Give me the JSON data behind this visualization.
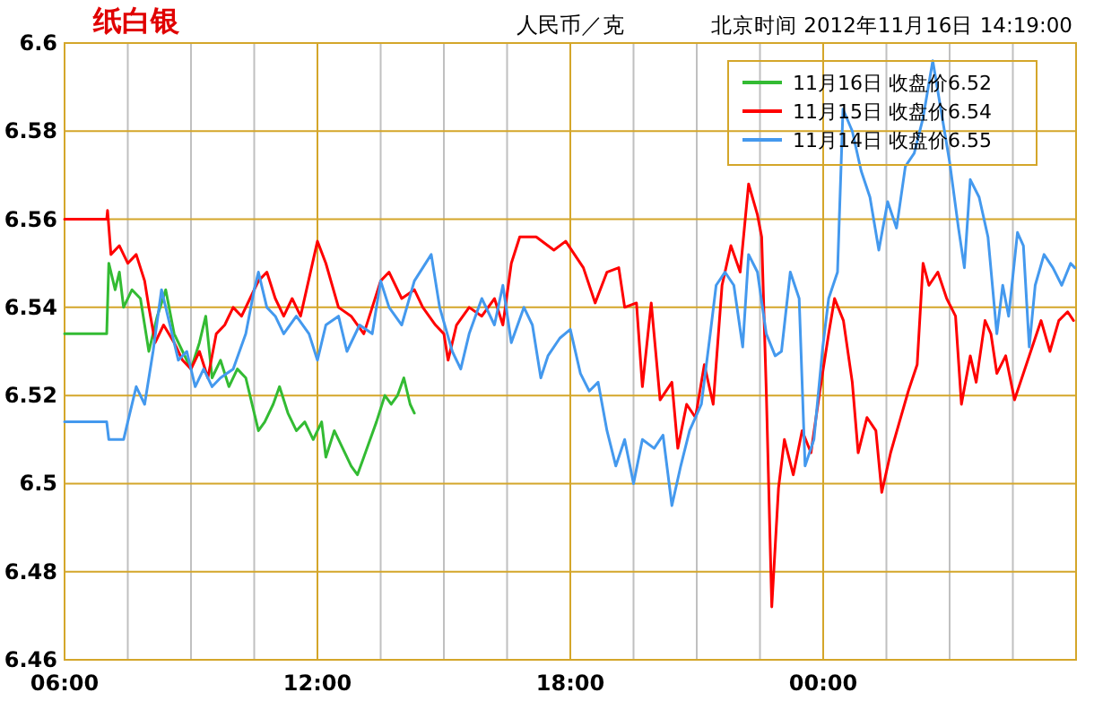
{
  "chart_data": {
    "type": "line",
    "title": "纸白银",
    "subtitle": "人民币／克",
    "annotations": [
      "北京时间 2012年11月16日 14:19:00"
    ],
    "xlim": [
      6,
      30
    ],
    "ylim": [
      6.46,
      6.6
    ],
    "xticks": [
      {
        "value": 6,
        "label": "06:00"
      },
      {
        "value": 7.5,
        "label": null
      },
      {
        "value": 9,
        "label": null
      },
      {
        "value": 10.5,
        "label": null
      },
      {
        "value": 12,
        "label": "12:00"
      },
      {
        "value": 13.5,
        "label": null
      },
      {
        "value": 15,
        "label": null
      },
      {
        "value": 16.5,
        "label": null
      },
      {
        "value": 18,
        "label": "18:00"
      },
      {
        "value": 19.5,
        "label": null
      },
      {
        "value": 21,
        "label": null
      },
      {
        "value": 22.5,
        "label": null
      },
      {
        "value": 24,
        "label": "00:00"
      },
      {
        "value": 25.5,
        "label": null
      },
      {
        "value": 27,
        "label": null
      },
      {
        "value": 28.5,
        "label": null
      }
    ],
    "yticks": [
      6.46,
      6.48,
      6.5,
      6.52,
      6.54,
      6.56,
      6.58,
      6.6
    ],
    "grid": true,
    "legend": "top right",
    "line_style": "solid",
    "series": [
      {
        "name": "11月16日 收盘价6.52",
        "color": "#33bb33",
        "x": [
          6.0,
          7.0,
          7.05,
          7.2,
          7.3,
          7.4,
          7.6,
          7.8,
          8.0,
          8.2,
          8.4,
          8.6,
          8.8,
          9.0,
          9.2,
          9.35,
          9.5,
          9.7,
          9.9,
          10.1,
          10.3,
          10.45,
          10.6,
          10.75,
          10.95,
          11.1,
          11.3,
          11.5,
          11.7,
          11.9,
          12.1,
          12.2,
          12.4,
          12.6,
          12.8,
          12.95,
          13.1,
          13.25,
          13.4,
          13.6,
          13.75,
          13.9,
          14.05,
          14.2,
          14.3
        ],
        "values": [
          6.534,
          6.534,
          6.55,
          6.544,
          6.548,
          6.54,
          6.544,
          6.542,
          6.53,
          6.538,
          6.544,
          6.534,
          6.53,
          6.526,
          6.532,
          6.538,
          6.524,
          6.528,
          6.522,
          6.526,
          6.524,
          6.518,
          6.512,
          6.514,
          6.518,
          6.522,
          6.516,
          6.512,
          6.514,
          6.51,
          6.514,
          6.506,
          6.512,
          6.508,
          6.504,
          6.502,
          6.506,
          6.51,
          6.514,
          6.52,
          6.518,
          6.52,
          6.524,
          6.518,
          6.516
        ]
      },
      {
        "name": "11月15日 收盘价6.54",
        "color": "#ff0000",
        "x": [
          6.0,
          7.0,
          7.02,
          7.1,
          7.3,
          7.5,
          7.7,
          7.9,
          8.0,
          8.15,
          8.35,
          8.6,
          8.8,
          9.0,
          9.2,
          9.4,
          9.6,
          9.8,
          10.0,
          10.2,
          10.4,
          10.6,
          10.8,
          11.0,
          11.2,
          11.4,
          11.6,
          12.0,
          12.2,
          12.5,
          12.8,
          13.1,
          13.3,
          13.5,
          13.7,
          14.0,
          14.3,
          14.5,
          14.8,
          15.0,
          15.1,
          15.3,
          15.6,
          15.9,
          16.2,
          16.4,
          16.6,
          16.8,
          17.19,
          17.61,
          17.89,
          18.31,
          18.59,
          18.87,
          19.15,
          19.29,
          19.57,
          19.71,
          19.92,
          20.13,
          20.41,
          20.55,
          20.76,
          20.97,
          21.18,
          21.39,
          21.6,
          21.81,
          22.03,
          22.23,
          22.44,
          22.54,
          22.65,
          22.78,
          22.94,
          23.08,
          23.29,
          23.5,
          23.71,
          23.92,
          24.13,
          24.27,
          24.48,
          24.69,
          24.83,
          25.04,
          25.25,
          25.39,
          25.6,
          25.81,
          26.02,
          26.23,
          26.37,
          26.51,
          26.72,
          26.93,
          27.14,
          27.28,
          27.49,
          27.63,
          27.84,
          27.98,
          28.12,
          28.33,
          28.54,
          28.75,
          28.96,
          29.17,
          29.38,
          29.59,
          29.8,
          29.94
        ],
        "values": [
          6.56,
          6.56,
          6.562,
          6.552,
          6.554,
          6.55,
          6.552,
          6.546,
          6.54,
          6.532,
          6.536,
          6.532,
          6.528,
          6.526,
          6.53,
          6.524,
          6.534,
          6.536,
          6.54,
          6.538,
          6.542,
          6.546,
          6.548,
          6.542,
          6.538,
          6.542,
          6.538,
          6.555,
          6.55,
          6.54,
          6.538,
          6.534,
          6.54,
          6.546,
          6.548,
          6.542,
          6.544,
          6.54,
          6.536,
          6.534,
          6.528,
          6.536,
          6.54,
          6.538,
          6.542,
          6.536,
          6.55,
          6.556,
          6.556,
          6.553,
          6.555,
          6.549,
          6.541,
          6.548,
          6.549,
          6.54,
          6.541,
          6.522,
          6.541,
          6.519,
          6.523,
          6.508,
          6.518,
          6.515,
          6.527,
          6.518,
          6.545,
          6.554,
          6.548,
          6.568,
          6.561,
          6.556,
          6.521,
          6.472,
          6.499,
          6.51,
          6.502,
          6.512,
          6.507,
          6.521,
          6.534,
          6.542,
          6.537,
          6.523,
          6.507,
          6.515,
          6.512,
          6.498,
          6.507,
          6.514,
          6.521,
          6.527,
          6.55,
          6.545,
          6.548,
          6.542,
          6.538,
          6.518,
          6.529,
          6.523,
          6.537,
          6.534,
          6.525,
          6.529,
          6.519,
          6.525,
          6.531,
          6.537,
          6.53,
          6.537,
          6.539,
          6.537
        ]
      },
      {
        "name": "11月14日 收盘价6.55",
        "color": "#4499ee",
        "x": [
          6.0,
          7.0,
          7.05,
          7.4,
          7.5,
          7.7,
          7.9,
          8.1,
          8.3,
          8.5,
          8.7,
          8.9,
          9.1,
          9.3,
          9.5,
          9.7,
          10.0,
          10.3,
          10.5,
          10.6,
          10.8,
          11.0,
          11.2,
          11.5,
          11.8,
          12.0,
          12.2,
          12.5,
          12.7,
          13.0,
          13.3,
          13.5,
          13.7,
          14.0,
          14.3,
          14.7,
          14.9,
          15.2,
          15.4,
          15.6,
          15.9,
          16.2,
          16.4,
          16.6,
          16.9,
          17.1,
          17.3,
          17.47,
          17.75,
          18.0,
          18.24,
          18.45,
          18.66,
          18.87,
          19.08,
          19.29,
          19.5,
          19.71,
          19.99,
          20.2,
          20.41,
          20.62,
          20.83,
          21.11,
          21.32,
          21.46,
          21.67,
          21.88,
          22.09,
          22.23,
          22.44,
          22.65,
          22.86,
          23.01,
          23.22,
          23.43,
          23.57,
          23.78,
          23.99,
          24.13,
          24.34,
          24.47,
          24.69,
          24.9,
          25.11,
          25.32,
          25.53,
          25.74,
          25.95,
          26.16,
          26.37,
          26.6,
          27.0,
          27.21,
          27.35,
          27.49,
          27.7,
          27.91,
          28.12,
          28.26,
          28.4,
          28.61,
          28.75,
          28.89,
          29.03,
          29.24,
          29.45,
          29.66,
          29.87,
          29.97
        ],
        "values": [
          6.514,
          6.514,
          6.51,
          6.51,
          6.514,
          6.522,
          6.518,
          6.53,
          6.544,
          6.536,
          6.528,
          6.53,
          6.522,
          6.526,
          6.522,
          6.524,
          6.526,
          6.534,
          6.544,
          6.548,
          6.54,
          6.538,
          6.534,
          6.538,
          6.534,
          6.528,
          6.536,
          6.538,
          6.53,
          6.536,
          6.534,
          6.546,
          6.54,
          6.536,
          6.546,
          6.552,
          6.54,
          6.53,
          6.526,
          6.534,
          6.542,
          6.536,
          6.545,
          6.532,
          6.54,
          6.536,
          6.524,
          6.529,
          6.533,
          6.535,
          6.525,
          6.521,
          6.523,
          6.512,
          6.504,
          6.51,
          6.5,
          6.51,
          6.508,
          6.511,
          6.495,
          6.504,
          6.512,
          6.518,
          6.534,
          6.545,
          6.548,
          6.545,
          6.531,
          6.552,
          6.548,
          6.534,
          6.529,
          6.53,
          6.548,
          6.542,
          6.504,
          6.51,
          6.531,
          6.542,
          6.548,
          6.585,
          6.58,
          6.571,
          6.565,
          6.553,
          6.564,
          6.558,
          6.572,
          6.575,
          6.583,
          6.596,
          6.573,
          6.558,
          6.549,
          6.569,
          6.565,
          6.556,
          6.534,
          6.545,
          6.538,
          6.557,
          6.554,
          6.531,
          6.545,
          6.552,
          6.549,
          6.545,
          6.55,
          6.549
        ]
      }
    ]
  }
}
